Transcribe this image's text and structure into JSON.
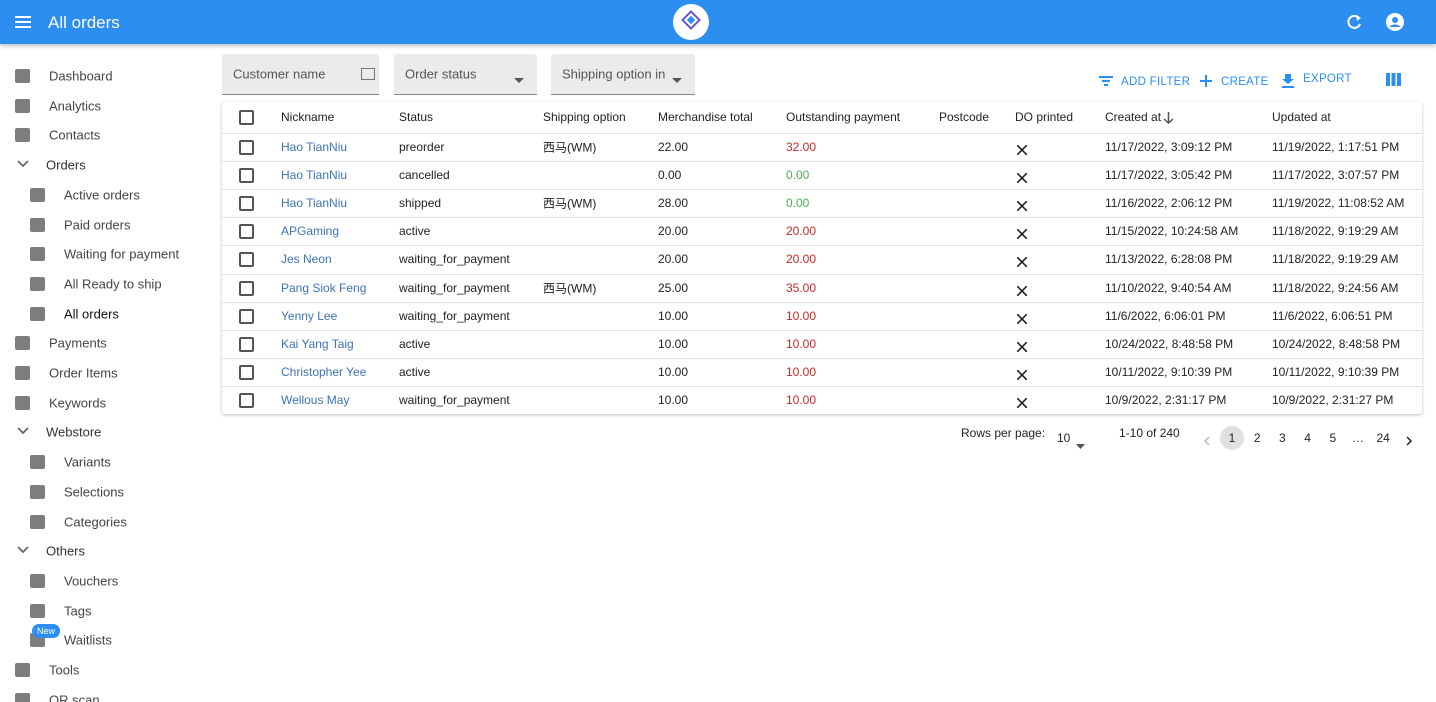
{
  "header": {
    "title": "All orders"
  },
  "sidebar": {
    "items": [
      {
        "label": "Dashboard",
        "level": "top"
      },
      {
        "label": "Analytics",
        "level": "top"
      },
      {
        "label": "Contacts",
        "level": "top"
      },
      {
        "label": "Orders",
        "level": "group"
      },
      {
        "label": "Active orders",
        "level": "sub"
      },
      {
        "label": "Paid orders",
        "level": "sub"
      },
      {
        "label": "Waiting for payment",
        "level": "sub"
      },
      {
        "label": "All Ready to ship",
        "level": "sub"
      },
      {
        "label": "All orders",
        "level": "sub",
        "selected": true
      },
      {
        "label": "Payments",
        "level": "top"
      },
      {
        "label": "Order Items",
        "level": "top"
      },
      {
        "label": "Keywords",
        "level": "top"
      },
      {
        "label": "Webstore",
        "level": "group"
      },
      {
        "label": "Variants",
        "level": "sub"
      },
      {
        "label": "Selections",
        "level": "sub"
      },
      {
        "label": "Categories",
        "level": "sub"
      },
      {
        "label": "Others",
        "level": "group"
      },
      {
        "label": "Vouchers",
        "level": "sub"
      },
      {
        "label": "Tags",
        "level": "sub"
      },
      {
        "label": "Waitlists",
        "level": "sub",
        "badge": "New"
      },
      {
        "label": "Tools",
        "level": "top"
      },
      {
        "label": "QR scan",
        "level": "top"
      }
    ]
  },
  "filters": [
    "Customer name",
    "Order status",
    "Shipping option in"
  ],
  "actions": [
    "ADD FILTER",
    "CREATE",
    "EXPORT"
  ],
  "table": {
    "columns": [
      "Nickname",
      "Status",
      "Shipping option",
      "Merchandise total",
      "Outstanding payment",
      "Postcode",
      "DO printed",
      "Created at",
      "Updated at"
    ],
    "rows": [
      {
        "nickname": "Hao TianNiu",
        "status": "preorder",
        "shipping": "西马(WM)",
        "merchandise_total": "22.00",
        "outstanding_payment": "32.00",
        "created_at": "11/17/2022, 3:09:12 PM",
        "updated_at": "11/19/2022, 1:17:51 PM"
      },
      {
        "nickname": "Hao TianNiu",
        "status": "cancelled",
        "merchandise_total": "0.00",
        "outstanding_payment": "0.00",
        "created_at": "11/17/2022, 3:05:42 PM",
        "updated_at": "11/17/2022, 3:07:57 PM"
      },
      {
        "nickname": "Hao TianNiu",
        "status": "shipped",
        "shipping": "西马(WM)",
        "merchandise_total": "28.00",
        "outstanding_payment": "0.00",
        "created_at": "11/16/2022, 2:06:12 PM",
        "updated_at": "11/19/2022, 11:08:52 AM"
      },
      {
        "nickname": "APGaming",
        "status": "active",
        "merchandise_total": "20.00",
        "outstanding_payment": "20.00",
        "created_at": "11/15/2022, 10:24:58 AM",
        "updated_at": "11/18/2022, 9:19:29 AM"
      },
      {
        "nickname": "Jes Neon",
        "status": "waiting_for_payment",
        "merchandise_total": "20.00",
        "outstanding_payment": "20.00",
        "created_at": "11/13/2022, 6:28:08 PM",
        "updated_at": "11/18/2022, 9:19:29 AM"
      },
      {
        "nickname": "Pang Siok Feng",
        "status": "waiting_for_payment",
        "shipping": "西马(WM)",
        "merchandise_total": "25.00",
        "outstanding_payment": "35.00",
        "created_at": "11/10/2022, 9:40:54 AM",
        "updated_at": "11/18/2022, 9:24:56 AM"
      },
      {
        "nickname": "Yenny Lee",
        "status": "waiting_for_payment",
        "merchandise_total": "10.00",
        "outstanding_payment": "10.00",
        "created_at": "11/6/2022, 6:06:01 PM",
        "updated_at": "11/6/2022, 6:06:51 PM"
      },
      {
        "nickname": "Kai Yang Taig",
        "status": "active",
        "merchandise_total": "10.00",
        "outstanding_payment": "10.00",
        "created_at": "10/24/2022, 8:48:58 PM",
        "updated_at": "10/24/2022, 8:48:58 PM"
      },
      {
        "nickname": "Christopher Yee",
        "status": "active",
        "merchandise_total": "10.00",
        "outstanding_payment": "10.00",
        "created_at": "10/11/2022, 9:10:39 PM",
        "updated_at": "10/11/2022, 9:10:39 PM"
      },
      {
        "nickname": "Wellous May",
        "status": "waiting_for_payment",
        "merchandise_total": "10.00",
        "outstanding_payment": "10.00",
        "created_at": "10/9/2022, 2:31:17 PM",
        "updated_at": "10/9/2022, 2:31:27 PM"
      }
    ]
  },
  "pagination": {
    "rows_per_page_label": "Rows per page:",
    "rows_per_page": "10",
    "range": "1-10 of 240",
    "pages": [
      "1",
      "2",
      "3",
      "4",
      "5",
      "…",
      "24"
    ],
    "current": "1"
  }
}
